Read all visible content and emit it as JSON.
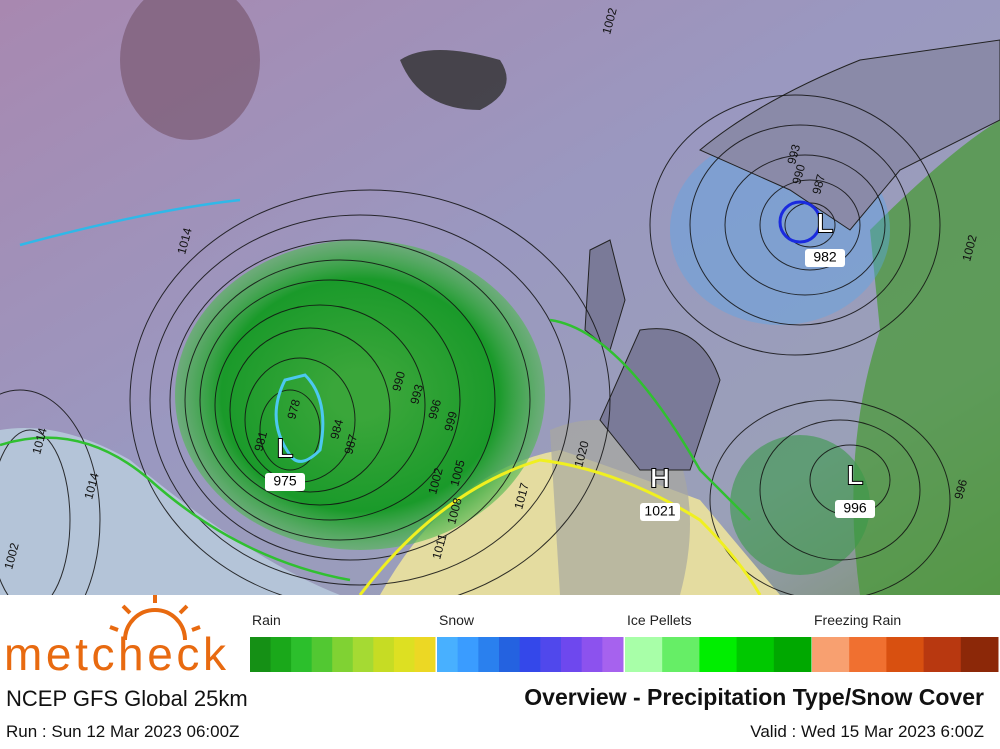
{
  "brand": "metcheck",
  "model": "NCEP GFS Global 25km",
  "run": "Run : Sun 12 Mar 2023 06:00Z",
  "title": "Overview - Precipitation Type/Snow Cover",
  "valid": "Valid : Wed 15 Mar 2023 6:00Z",
  "legend": [
    {
      "label": "Rain",
      "colors": [
        "#159015",
        "#1aa81a",
        "#2cbf2c",
        "#52c832",
        "#80d233",
        "#a5da33",
        "#c6dc24",
        "#dde022",
        "#ecd824"
      ]
    },
    {
      "label": "Snow",
      "colors": [
        "#48b0ff",
        "#3a9cff",
        "#2a80ee",
        "#2462e0",
        "#3448ea",
        "#5048ec",
        "#6e48ee",
        "#8c52ee",
        "#a662ee"
      ]
    },
    {
      "label": "Ice Pellets",
      "colors": [
        "#a8ffa8",
        "#66ee66",
        "#00ee00",
        "#00c800",
        "#00a800"
      ]
    },
    {
      "label": "Freezing Rain",
      "colors": [
        "#f8a070",
        "#f07030",
        "#d85010",
        "#b83810",
        "#8c2808"
      ]
    }
  ],
  "map": {
    "centers": [
      {
        "type": "L",
        "pressure": "975"
      },
      {
        "type": "L",
        "pressure": "982"
      },
      {
        "type": "H",
        "pressure": "1021"
      },
      {
        "type": "L",
        "pressure": "996"
      }
    ],
    "isobar_labels": [
      "1014",
      "1014",
      "1017",
      "1020",
      "978",
      "981",
      "984",
      "987",
      "990",
      "993",
      "996",
      "999",
      "1002",
      "1005",
      "1008",
      "1011",
      "1002",
      "996",
      "990",
      "987",
      "993",
      "1002",
      "1002",
      "1014"
    ]
  }
}
